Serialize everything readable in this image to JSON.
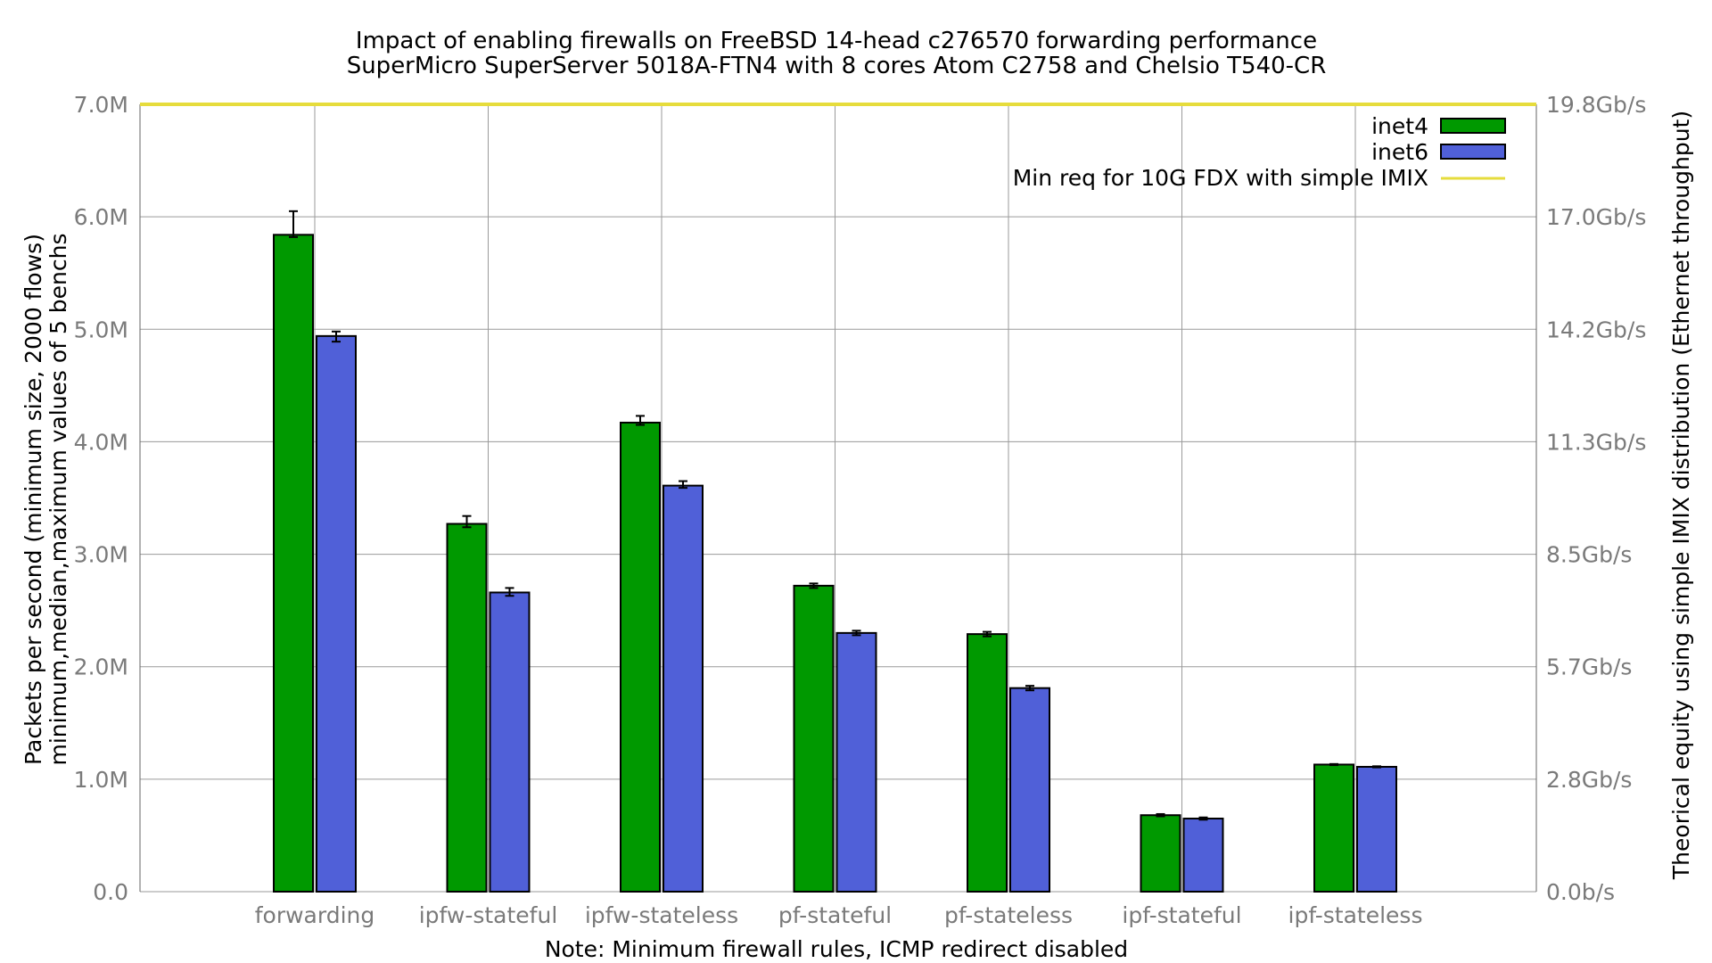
{
  "chart_data": {
    "type": "bar",
    "title": "Impact of enabling firewalls on FreeBSD 14-head c276570 forwarding performance",
    "subtitle": "SuperMicro SuperServer 5018A-FTN4 with 8 cores Atom C2758 and Chelsio T540-CR",
    "xlabel": "Note: Minimum firewall rules, ICMP redirect disabled",
    "ylabel": "Packets per second (minimum size, 2000 flows)",
    "ylabel2": "minimum,median,maximum values of 5 benchs",
    "y2label": "Theorical equity using simple IMIX distribution (Ethernet throughput)",
    "ylim": [
      0,
      7000000
    ],
    "grid": true,
    "legend_position": "top-right",
    "y_ticks": [
      {
        "value": 0,
        "label": "0.0"
      },
      {
        "value": 1000000,
        "label": "1.0M"
      },
      {
        "value": 2000000,
        "label": "2.0M"
      },
      {
        "value": 3000000,
        "label": "3.0M"
      },
      {
        "value": 4000000,
        "label": "4.0M"
      },
      {
        "value": 5000000,
        "label": "5.0M"
      },
      {
        "value": 6000000,
        "label": "6.0M"
      },
      {
        "value": 7000000,
        "label": "7.0M"
      }
    ],
    "y2_ticks": [
      {
        "value": 0,
        "label": "0.0b/s"
      },
      {
        "value": 1000000,
        "label": "2.8Gb/s"
      },
      {
        "value": 2000000,
        "label": "5.7Gb/s"
      },
      {
        "value": 3000000,
        "label": "8.5Gb/s"
      },
      {
        "value": 4000000,
        "label": "11.3Gb/s"
      },
      {
        "value": 5000000,
        "label": "14.2Gb/s"
      },
      {
        "value": 6000000,
        "label": "17.0Gb/s"
      },
      {
        "value": 7000000,
        "label": "19.8Gb/s"
      }
    ],
    "categories": [
      "forwarding",
      "ipfw-stateful",
      "ipfw-stateless",
      "pf-stateful",
      "pf-stateless",
      "ipf-stateful",
      "ipf-stateless"
    ],
    "series": [
      {
        "name": "inet4",
        "color": "#009900",
        "values": [
          5840000,
          3270000,
          4170000,
          2720000,
          2290000,
          680000,
          1130000
        ],
        "min": [
          5820000,
          3240000,
          4150000,
          2700000,
          2270000,
          670000,
          1125000
        ],
        "max": [
          6050000,
          3340000,
          4230000,
          2740000,
          2310000,
          690000,
          1135000
        ]
      },
      {
        "name": "inet6",
        "color": "#5060d8",
        "values": [
          4940000,
          2660000,
          3610000,
          2300000,
          1810000,
          650000,
          1110000
        ],
        "min": [
          4890000,
          2630000,
          3590000,
          2280000,
          1790000,
          640000,
          1105000
        ],
        "max": [
          4980000,
          2700000,
          3650000,
          2320000,
          1830000,
          660000,
          1115000
        ]
      }
    ],
    "reference_line": {
      "name": "Min req for 10G FDX with simple IMIX",
      "value": 7000000,
      "color": "#e6dc3c"
    }
  }
}
